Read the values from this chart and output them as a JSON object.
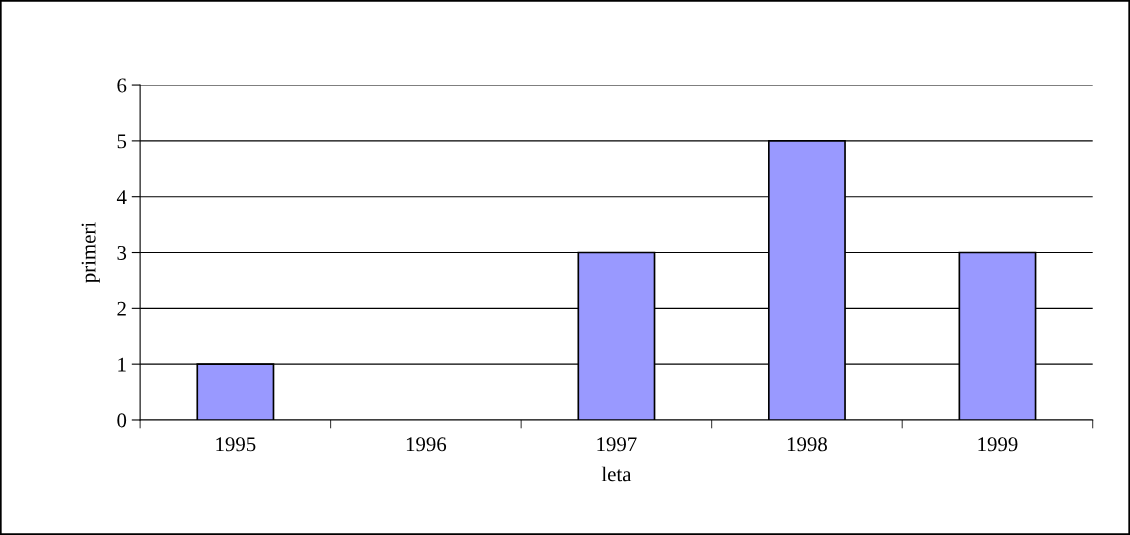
{
  "chart_data": {
    "type": "bar",
    "xlabel": "leta",
    "ylabel": "primeri",
    "categories": [
      "1995",
      "1996",
      "1997",
      "1998",
      "1999"
    ],
    "values": [
      1,
      0,
      3,
      5,
      3
    ],
    "color": "#9999ff",
    "ylim": [
      0,
      6
    ],
    "yticks": [
      0,
      1,
      2,
      3,
      4,
      5,
      6
    ],
    "grid": "y"
  }
}
